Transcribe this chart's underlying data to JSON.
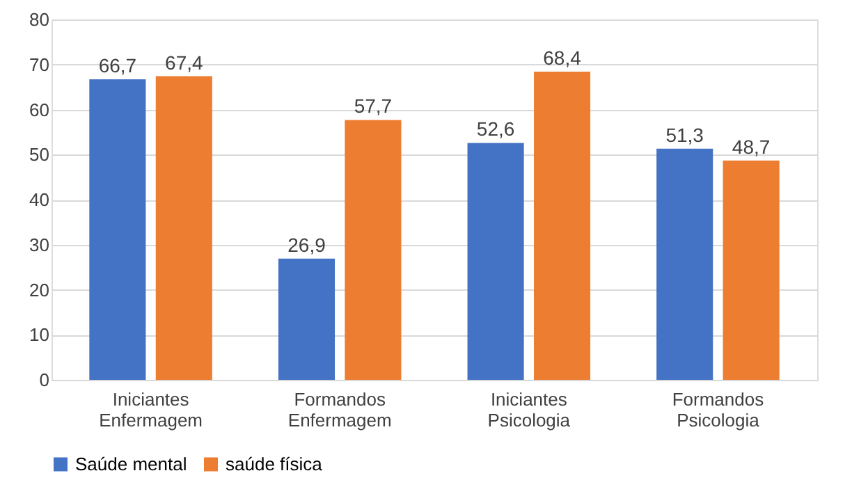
{
  "chart_data": {
    "type": "bar",
    "categories": [
      "Iniciantes Enfermagem",
      "Formandos Enfermagem",
      "Iniciantes Psicologia",
      "Formandos Psicologia"
    ],
    "series": [
      {
        "name": "Saúde mental",
        "color": "#4472c4",
        "values": [
          66.7,
          26.9,
          52.6,
          51.3
        ],
        "value_labels": [
          "66,7",
          "26,9",
          "52,6",
          "51,3"
        ]
      },
      {
        "name": "saúde física",
        "color": "#ed7d31",
        "values": [
          67.4,
          57.7,
          68.4,
          48.7
        ],
        "value_labels": [
          "67,4",
          "57,7",
          "68,4",
          "48,7"
        ]
      }
    ],
    "ylim": [
      0,
      80
    ],
    "yticks": [
      0,
      10,
      20,
      30,
      40,
      50,
      60,
      70,
      80
    ],
    "grid": "y",
    "legend": "bottom"
  }
}
